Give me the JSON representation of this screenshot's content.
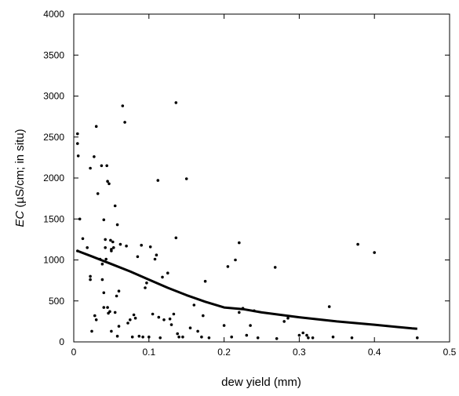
{
  "chart_data": {
    "type": "scatter",
    "title": "",
    "xlabel": "dew yield (mm)",
    "ylabel_prefix": "EC",
    "ylabel_rest": " (µS/cm; in situ)",
    "xlim": [
      0,
      0.5
    ],
    "ylim": [
      0,
      4000
    ],
    "x_ticks": [
      0,
      0.1,
      0.2,
      0.3,
      0.4,
      0.5
    ],
    "x_tick_labels": [
      "0",
      "0.1",
      "0.2",
      "0.3",
      "0.4",
      "0.5"
    ],
    "y_ticks": [
      0,
      500,
      1000,
      1500,
      2000,
      2500,
      3000,
      3500,
      4000
    ],
    "y_tick_labels": [
      "0",
      "500",
      "1000",
      "1500",
      "2000",
      "2500",
      "3000",
      "3500",
      "4000"
    ],
    "grid": false,
    "legend": "none",
    "colors": {
      "points": "#000000",
      "trend": "#000000"
    },
    "series": [
      {
        "kind": "points",
        "points": [
          [
            0.005,
            2540
          ],
          [
            0.005,
            2420
          ],
          [
            0.006,
            2270
          ],
          [
            0.008,
            1500
          ],
          [
            0.005,
            1110
          ],
          [
            0.012,
            1260
          ],
          [
            0.018,
            1150
          ],
          [
            0.022,
            2120
          ],
          [
            0.022,
            800
          ],
          [
            0.022,
            760
          ],
          [
            0.024,
            130
          ],
          [
            0.027,
            2260
          ],
          [
            0.028,
            320
          ],
          [
            0.03,
            2630
          ],
          [
            0.03,
            270
          ],
          [
            0.032,
            1810
          ],
          [
            0.035,
            1010
          ],
          [
            0.037,
            2150
          ],
          [
            0.038,
            950
          ],
          [
            0.038,
            760
          ],
          [
            0.04,
            1490
          ],
          [
            0.04,
            600
          ],
          [
            0.04,
            420
          ],
          [
            0.042,
            1250
          ],
          [
            0.042,
            1150
          ],
          [
            0.043,
            1010
          ],
          [
            0.044,
            2150
          ],
          [
            0.045,
            1960
          ],
          [
            0.045,
            420
          ],
          [
            0.046,
            350
          ],
          [
            0.047,
            1930
          ],
          [
            0.048,
            370
          ],
          [
            0.049,
            1240
          ],
          [
            0.05,
            1130
          ],
          [
            0.05,
            1110
          ],
          [
            0.05,
            130
          ],
          [
            0.052,
            1220
          ],
          [
            0.053,
            1150
          ],
          [
            0.055,
            360
          ],
          [
            0.055,
            1660
          ],
          [
            0.057,
            560
          ],
          [
            0.058,
            1430
          ],
          [
            0.058,
            70
          ],
          [
            0.06,
            190
          ],
          [
            0.06,
            620
          ],
          [
            0.062,
            1190
          ],
          [
            0.065,
            2880
          ],
          [
            0.068,
            2680
          ],
          [
            0.07,
            1170
          ],
          [
            0.072,
            230
          ],
          [
            0.075,
            270
          ],
          [
            0.078,
            60
          ],
          [
            0.08,
            330
          ],
          [
            0.082,
            290
          ],
          [
            0.085,
            1040
          ],
          [
            0.087,
            70
          ],
          [
            0.09,
            1180
          ],
          [
            0.092,
            60
          ],
          [
            0.095,
            660
          ],
          [
            0.097,
            720
          ],
          [
            0.1,
            60
          ],
          [
            0.102,
            1160
          ],
          [
            0.105,
            340
          ],
          [
            0.108,
            1010
          ],
          [
            0.11,
            1060
          ],
          [
            0.112,
            1970
          ],
          [
            0.113,
            300
          ],
          [
            0.115,
            50
          ],
          [
            0.118,
            790
          ],
          [
            0.12,
            270
          ],
          [
            0.125,
            840
          ],
          [
            0.128,
            280
          ],
          [
            0.13,
            210
          ],
          [
            0.133,
            340
          ],
          [
            0.136,
            2920
          ],
          [
            0.136,
            1270
          ],
          [
            0.138,
            100
          ],
          [
            0.14,
            60
          ],
          [
            0.145,
            60
          ],
          [
            0.15,
            1990
          ],
          [
            0.155,
            170
          ],
          [
            0.16,
            450
          ],
          [
            0.165,
            130
          ],
          [
            0.17,
            60
          ],
          [
            0.172,
            320
          ],
          [
            0.175,
            740
          ],
          [
            0.18,
            50
          ],
          [
            0.2,
            200
          ],
          [
            0.205,
            920
          ],
          [
            0.21,
            60
          ],
          [
            0.215,
            1000
          ],
          [
            0.22,
            1210
          ],
          [
            0.22,
            360
          ],
          [
            0.225,
            410
          ],
          [
            0.23,
            80
          ],
          [
            0.235,
            200
          ],
          [
            0.24,
            380
          ],
          [
            0.245,
            50
          ],
          [
            0.268,
            910
          ],
          [
            0.27,
            40
          ],
          [
            0.28,
            250
          ],
          [
            0.285,
            290
          ],
          [
            0.3,
            80
          ],
          [
            0.305,
            110
          ],
          [
            0.31,
            80
          ],
          [
            0.312,
            50
          ],
          [
            0.318,
            50
          ],
          [
            0.34,
            430
          ],
          [
            0.345,
            60
          ],
          [
            0.37,
            50
          ],
          [
            0.378,
            1190
          ],
          [
            0.4,
            1090
          ],
          [
            0.457,
            50
          ]
        ]
      },
      {
        "kind": "trend",
        "points": [
          [
            0.005,
            1110
          ],
          [
            0.025,
            1040
          ],
          [
            0.05,
            950
          ],
          [
            0.075,
            860
          ],
          [
            0.1,
            760
          ],
          [
            0.125,
            660
          ],
          [
            0.15,
            570
          ],
          [
            0.175,
            490
          ],
          [
            0.2,
            420
          ],
          [
            0.225,
            400
          ],
          [
            0.25,
            360
          ],
          [
            0.3,
            300
          ],
          [
            0.35,
            250
          ],
          [
            0.4,
            210
          ],
          [
            0.45,
            165
          ],
          [
            0.457,
            160
          ]
        ]
      }
    ]
  }
}
